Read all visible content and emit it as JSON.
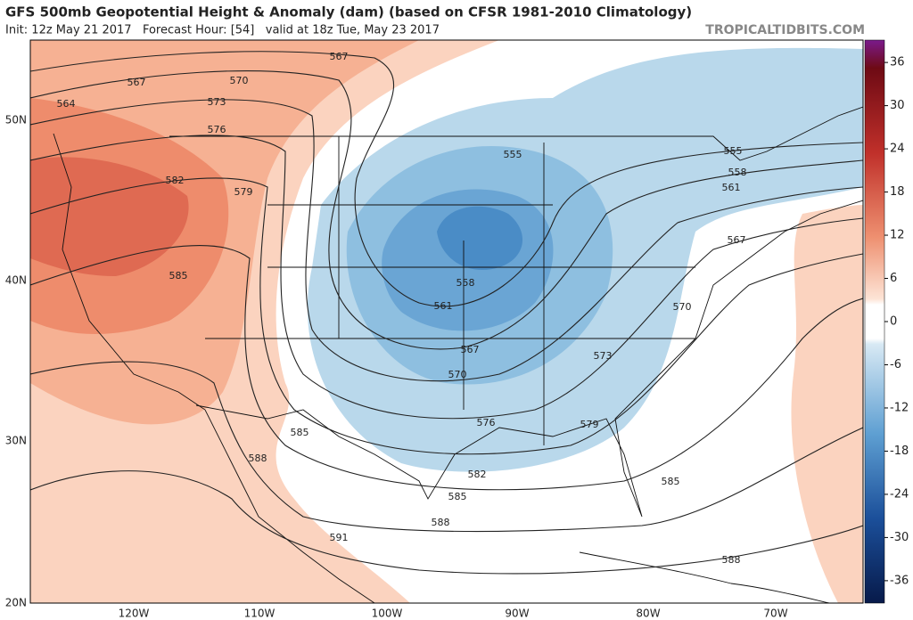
{
  "header": {
    "title": "GFS 500mb Geopotential Height & Anomaly (dam) (based on CFSR 1981-2010 Climatology)",
    "subtitle": "Init: 12z May 21 2017   Forecast Hour: [54]   valid at 18z Tue, May 23 2017",
    "watermark": "TROPICALTIDBITS.COM"
  },
  "colorbar": {
    "ticks": [
      36,
      30,
      24,
      18,
      12,
      6,
      0,
      -6,
      -12,
      -18,
      -24,
      -30,
      -36
    ]
  },
  "axes": {
    "latitude": [
      "50N",
      "40N",
      "30N",
      "20N"
    ],
    "longitude": [
      "120W",
      "110W",
      "100W",
      "90W",
      "80W",
      "70W"
    ]
  },
  "contour_labels": [
    "567",
    "567",
    "570",
    "564",
    "573",
    "576",
    "582",
    "579",
    "585",
    "555",
    "555",
    "558",
    "561",
    "567",
    "558",
    "561",
    "567",
    "570",
    "573",
    "570",
    "576",
    "579",
    "585",
    "588",
    "582",
    "585",
    "588",
    "591",
    "585",
    "588"
  ]
}
